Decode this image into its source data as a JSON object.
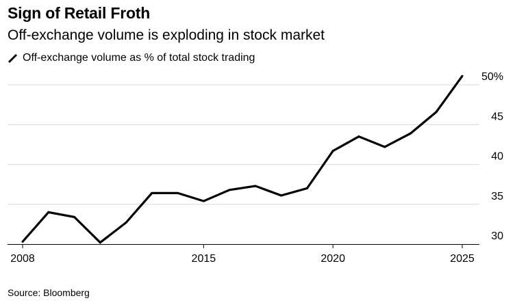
{
  "header": {
    "title": "Sign of Retail Froth",
    "subtitle": "Off-exchange volume is exploding in stock market"
  },
  "source": "Source: Bloomberg",
  "colors": {
    "line": "#000000",
    "grid": "#d9d9d9",
    "axis": "#000000"
  },
  "chart_data": {
    "type": "line",
    "title": "Sign of Retail Froth",
    "subtitle": "Off-exchange volume is exploding in stock market",
    "xlabel": "",
    "ylabel": "",
    "legend_position": "top-left",
    "grid": true,
    "xlim": [
      2008,
      2025
    ],
    "ylim": [
      30,
      50
    ],
    "y_ticks": [
      30,
      35,
      40,
      45,
      50
    ],
    "y_tick_labels": [
      "30",
      "35",
      "40",
      "45",
      "50%"
    ],
    "x_ticks": [
      2008,
      2015,
      2020,
      2025
    ],
    "x_tick_labels": [
      "2008",
      "2015",
      "2020",
      "2025"
    ],
    "series": [
      {
        "name": "Off-exchange volume as % of total stock trading",
        "x": [
          2008,
          2009,
          2010,
          2011,
          2012,
          2013,
          2014,
          2015,
          2016,
          2017,
          2018,
          2019,
          2020,
          2021,
          2022,
          2023,
          2024,
          2025
        ],
        "values": [
          30.3,
          34.0,
          33.4,
          30.2,
          32.7,
          36.4,
          36.4,
          35.4,
          36.8,
          37.3,
          36.1,
          37.0,
          41.7,
          43.5,
          42.2,
          43.9,
          46.6,
          51.1
        ]
      }
    ]
  }
}
